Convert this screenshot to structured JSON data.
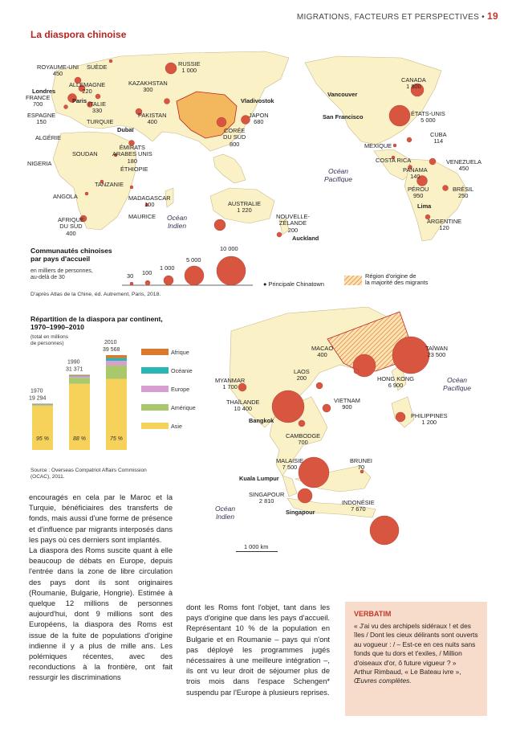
{
  "header": {
    "section": "MIGRATIONS, FACTEURS ET PERSPECTIVES",
    "sep": "•",
    "page": "19"
  },
  "title": "La diaspora chinoise",
  "world": {
    "labels": [
      {
        "t": "ROYAUME-UNI\n450"
      },
      {
        "t": "SUÈDE"
      },
      {
        "t": "Londres"
      },
      {
        "t": "FRANCE\n700"
      },
      {
        "t": "Paris"
      },
      {
        "t": "ALLEMAGNE\n220"
      },
      {
        "t": "ITALIE\n330"
      },
      {
        "t": "ESPAGNE\n150"
      },
      {
        "t": "TURQUIE"
      },
      {
        "t": "RUSSIE\n1 000"
      },
      {
        "t": "KAZAKHSTAN\n300"
      },
      {
        "t": "PAKISTAN\n400"
      },
      {
        "t": "Dubaï"
      },
      {
        "t": "ÉMIRATS\nARABES UNIS\n180"
      },
      {
        "t": "ALGÉRIE"
      },
      {
        "t": "SOUDAN"
      },
      {
        "t": "NIGERIA"
      },
      {
        "t": "ÉTHIOPIE"
      },
      {
        "t": "TANZANIE"
      },
      {
        "t": "ANGOLA"
      },
      {
        "t": "MADAGASCAR\n100"
      },
      {
        "t": "MAURICE"
      },
      {
        "t": "AFRIQUE\nDU SUD\n400"
      },
      {
        "t": "Vladivostok"
      },
      {
        "t": "JAPON\n680"
      },
      {
        "t": "CORÉE\nDU SUD\n800"
      },
      {
        "t": "AUSTRALIE\n1 220"
      },
      {
        "t": "NOUVELLE-\nZÉLANDE\n200"
      },
      {
        "t": "Auckland"
      },
      {
        "t": "CANADA\n1 800"
      },
      {
        "t": "Vancouver"
      },
      {
        "t": "San Francisco"
      },
      {
        "t": "ÉTATS-UNIS\n5 000"
      },
      {
        "t": "CUBA\n114"
      },
      {
        "t": "MEXIQUE"
      },
      {
        "t": "COSTA RICA"
      },
      {
        "t": "PANAMA\n140"
      },
      {
        "t": "VENEZUELA\n450"
      },
      {
        "t": "PÉROU\n950"
      },
      {
        "t": "BRÉSIL\n250"
      },
      {
        "t": "Lima"
      },
      {
        "t": "ARGENTINE\n120"
      }
    ],
    "oceans": [
      "Océan\nIndien",
      "Océan\nPacifique"
    ]
  },
  "legend": {
    "title": "Communautés chinoises\npar pays d'accueil",
    "unit": "en milliers de personnes,\nau-delà de 30",
    "sizes": [
      "30",
      "100",
      "1 000",
      "5 000",
      "10 000"
    ],
    "chinatown": "Principale Chinatown",
    "origin": "Région d'origine de\nla majorité des migrants",
    "source": "D'après Atlas de la Chine, éd. Autrement, Paris, 2018."
  },
  "chart_data": {
    "type": "bar",
    "title": "Répartition de la diaspora par continent,\n1970–1990–2010",
    "unit": "(total en millions\nde personnes)",
    "categories": [
      "1970",
      "1990",
      "2010"
    ],
    "totals": [
      "19 294",
      "31 371",
      "39 568"
    ],
    "series": [
      {
        "name": "Asie",
        "color": "#f6d25a",
        "values": [
          95,
          88,
          75
        ]
      },
      {
        "name": "Amériques",
        "color": "#a9c86b",
        "values": [
          2,
          8,
          14
        ]
      },
      {
        "name": "Europe",
        "color": "#d99ed0",
        "values": [
          1,
          2,
          5
        ]
      },
      {
        "name": "Océanie",
        "color": "#2ab5b5",
        "values": [
          1,
          1,
          3
        ]
      },
      {
        "name": "Afrique",
        "color": "#d97b2f",
        "values": [
          1,
          1,
          3
        ]
      }
    ],
    "asie_labels": [
      "95 %",
      "88 %",
      "75 %"
    ],
    "source": "Source : Overseas Compatriot Affairs Commission\n(OCAC), 2011."
  },
  "asia": {
    "labels": [
      {
        "t": "MACAO\n400"
      },
      {
        "t": "TAÏWAN\n23 500"
      },
      {
        "t": "HONG KONG\n6 900"
      },
      {
        "t": "MYANMAR\n1 700"
      },
      {
        "t": "LAOS\n200"
      },
      {
        "t": "THAÏLANDE\n10 400"
      },
      {
        "t": "Bangkok"
      },
      {
        "t": "VIETNAM\n900"
      },
      {
        "t": "PHILIPPINES\n1 200"
      },
      {
        "t": "CAMBODGE\n700"
      },
      {
        "t": "MALAISIE\n7 500"
      },
      {
        "t": "BRUNEI\n70"
      },
      {
        "t": "Kuala Lumpur"
      },
      {
        "t": "SINGAPOUR\n2 810"
      },
      {
        "t": "Singapour"
      },
      {
        "t": "INDONÉSIE\n7 670"
      }
    ],
    "oceans": [
      "Océan\nPacifique",
      "Océan\nIndien"
    ],
    "scale": "1 000 km"
  },
  "text": {
    "col1": "encouragés en cela par le Maroc et la Turquie, bénéficiaires des transferts de fonds, mais aussi d'une forme de présence et d'influence par migrants interposés dans les pays où ces derniers sont implantés.\nLa diaspora des Roms suscite quant à elle beaucoup de débats en Europe, depuis l'entrée dans la zone de libre circulation des pays dont ils sont originaires (Roumanie, Bulgarie, Hongrie). Estimée à quelque 12 millions de personnes aujourd'hui, dont 9 millions sont des Européens, la diaspora des Roms est issue de la fuite de populations d'origine indienne il y a plus de mille ans. Les polémiques récentes, avec des reconductions à la frontière, ont fait ressurgir les discriminations",
    "col2": "dont les Roms font l'objet, tant dans les pays d'origine que dans les pays d'accueil. Représentant 10 % de la population en Bulgarie et en Roumanie – pays qui n'ont pas déployé les programmes jugés nécessaires à une meilleure intégration –, ils ont vu leur droit de séjourner plus de trois mois dans l'espace Schengen* suspendu par l'Europe à plusieurs reprises."
  },
  "verbatim": {
    "title": "VERBATIM",
    "quote": "« J'ai vu des archipels sidéraux ! et des îles / Dont les cieux délirants sont ouverts au vogueur : / – Est-ce en ces nuits sans fonds que tu dors et t'exiles, / Million d'oiseaux d'or, ô future vigueur ? »",
    "author": "Arthur Rimbaud, « Le Bateau ivre »,",
    "work": "Œuvres complètes."
  }
}
